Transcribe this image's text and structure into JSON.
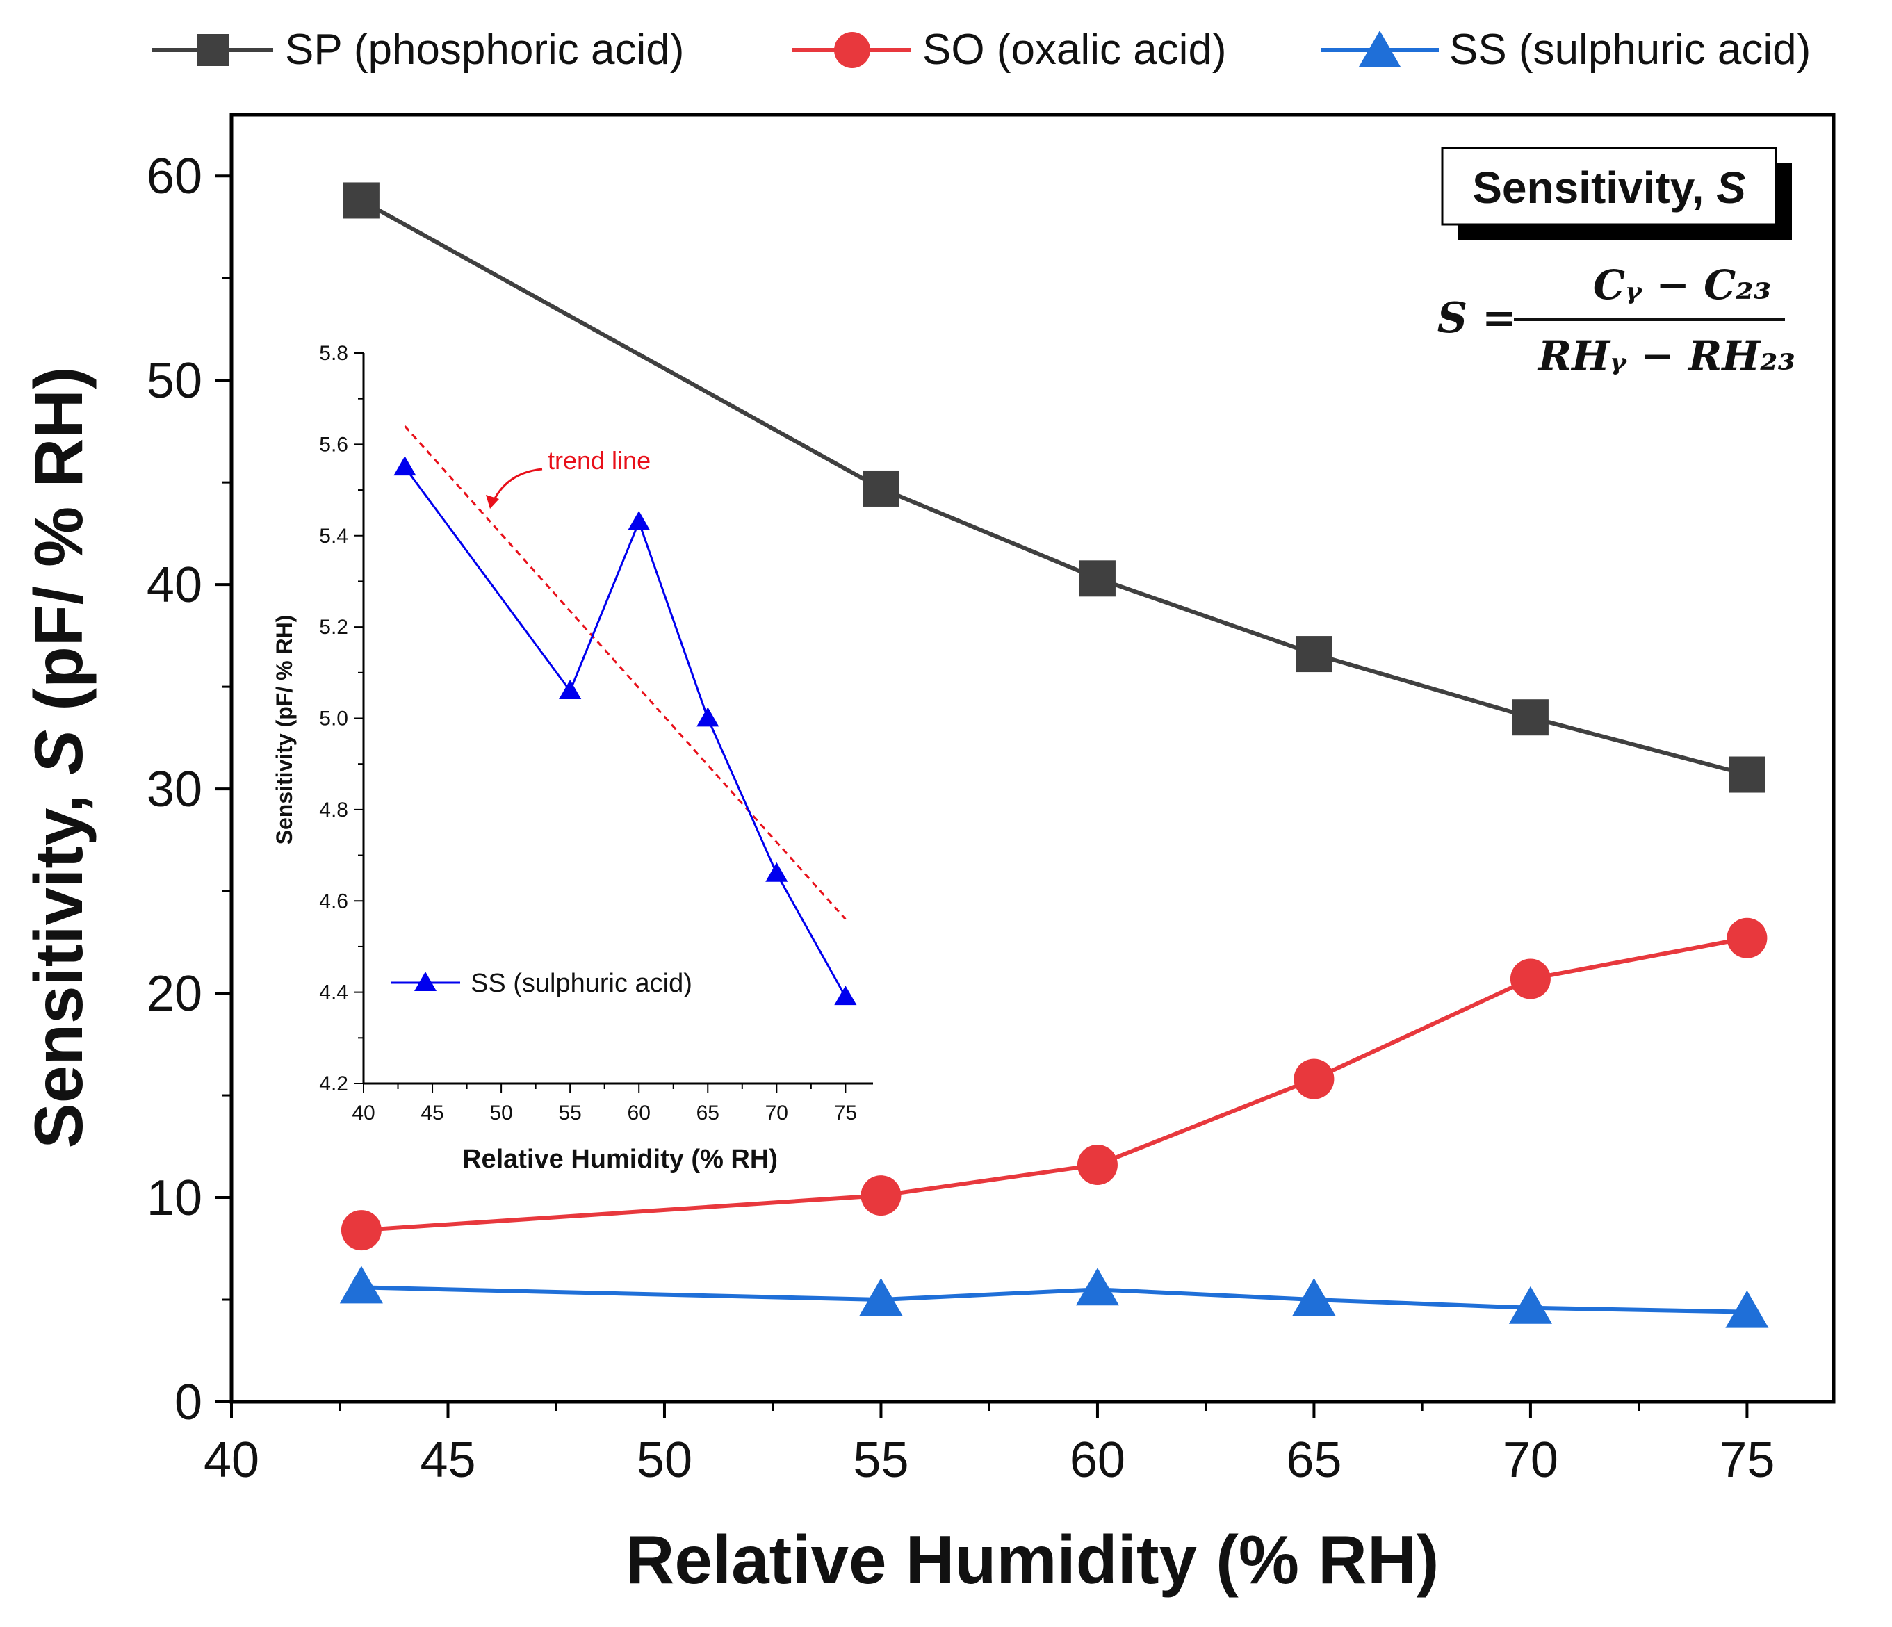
{
  "chart_data": {
    "type": "line",
    "title": "",
    "xlabel": "Relative Humidity (% RH)",
    "ylabel_prefix": "Sensitivity, ",
    "ylabel_symbol": "S",
    "ylabel_suffix": " (pF/ % RH)",
    "xlim": [
      40,
      77
    ],
    "ylim": [
      0,
      63
    ],
    "xticks": [
      40,
      45,
      50,
      55,
      60,
      65,
      70,
      75
    ],
    "yticks": [
      0,
      10,
      20,
      30,
      40,
      50,
      60
    ],
    "x": [
      43,
      55,
      60,
      65,
      70,
      75
    ],
    "legend_position": "top",
    "series": [
      {
        "name": "SP (phosphoric acid)",
        "color": "#404040",
        "marker": "square",
        "values": [
          58.8,
          44.7,
          40.3,
          36.6,
          33.5,
          30.7
        ]
      },
      {
        "name": "SO (oxalic acid)",
        "color": "#e8383d",
        "marker": "circle",
        "values": [
          8.4,
          10.1,
          11.6,
          15.8,
          20.7,
          22.7
        ]
      },
      {
        "name": "SS (sulphuric acid)",
        "color": "#1f6fd8",
        "marker": "triangle",
        "values": [
          5.6,
          5.0,
          5.5,
          5.0,
          4.6,
          4.4
        ]
      }
    ],
    "annotation_box": {
      "title_text": "Sensitivity, ",
      "title_symbol": "S",
      "formula_lhs": "S =",
      "numerator": "Cᵧ − C₂₃",
      "denominator": "RHᵧ − RH₂₃"
    },
    "inset": {
      "type": "line",
      "xlabel": "Relative Humidity (% RH)",
      "ylabel": "Sensitivity (pF/ % RH)",
      "xlim": [
        40,
        77
      ],
      "ylim": [
        4.2,
        5.8
      ],
      "xticks": [
        40,
        45,
        50,
        55,
        60,
        65,
        70,
        75
      ],
      "yticks": [
        4.2,
        4.4,
        4.6,
        4.8,
        5.0,
        5.2,
        5.4,
        5.6,
        5.8
      ],
      "x": [
        43,
        55,
        60,
        65,
        70,
        75
      ],
      "series": [
        {
          "name": "SS (sulphuric acid)",
          "color": "#0000ee",
          "marker": "triangle",
          "values": [
            5.55,
            5.06,
            5.43,
            5.0,
            4.66,
            4.39
          ]
        }
      ],
      "trend_line": {
        "label": "trend line",
        "color": "#e8101a",
        "x": [
          43,
          75
        ],
        "y": [
          5.64,
          4.56
        ]
      },
      "legend_label": "SS (sulphuric acid)"
    }
  }
}
